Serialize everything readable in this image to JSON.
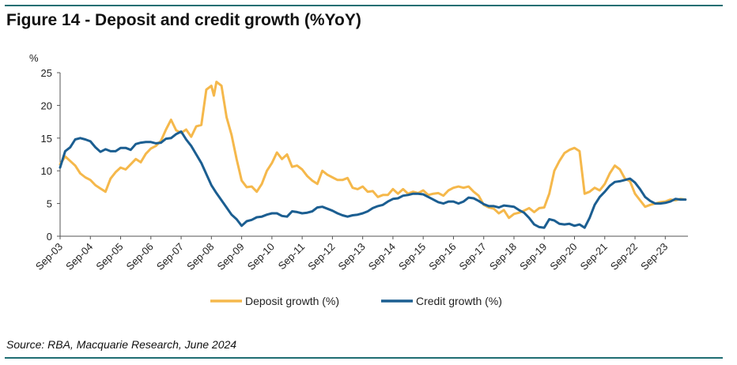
{
  "figure": {
    "title": "Figure 14 - Deposit and credit growth (%YoY)",
    "source": "Source: RBA, Macquarie Research, June 2024",
    "rule_color": "#1f6e73"
  },
  "chart_data": {
    "type": "line",
    "title": "Figure 14 - Deposit and credit growth (%YoY)",
    "ylabel": "%",
    "xlabel": "",
    "ylim": [
      0,
      25
    ],
    "yticks": [
      0,
      5,
      10,
      15,
      20,
      25
    ],
    "xlim": [
      "2003-09",
      "2024-06"
    ],
    "xticks": [
      "Sep-03",
      "Sep-04",
      "Sep-05",
      "Sep-06",
      "Sep-07",
      "Sep-08",
      "Sep-09",
      "Sep-10",
      "Sep-11",
      "Sep-12",
      "Sep-13",
      "Sep-14",
      "Sep-15",
      "Sep-16",
      "Sep-17",
      "Sep-18",
      "Sep-19",
      "Sep-20",
      "Sep-21",
      "Sep-22",
      "Sep-23"
    ],
    "grid": false,
    "legend": "bottom-center",
    "series": [
      {
        "name": "Deposit growth (%)",
        "color": "#f5b84b",
        "points": [
          [
            "2003-09",
            11.0
          ],
          [
            "2003-11",
            12.2
          ],
          [
            "2004-01",
            11.5
          ],
          [
            "2004-03",
            10.8
          ],
          [
            "2004-05",
            9.6
          ],
          [
            "2004-07",
            9.0
          ],
          [
            "2004-09",
            8.6
          ],
          [
            "2004-11",
            7.8
          ],
          [
            "2005-01",
            7.3
          ],
          [
            "2005-03",
            6.8
          ],
          [
            "2005-05",
            8.8
          ],
          [
            "2005-07",
            9.8
          ],
          [
            "2005-09",
            10.5
          ],
          [
            "2005-11",
            10.2
          ],
          [
            "2006-01",
            11.0
          ],
          [
            "2006-03",
            11.8
          ],
          [
            "2006-05",
            11.3
          ],
          [
            "2006-07",
            12.6
          ],
          [
            "2006-09",
            13.4
          ],
          [
            "2006-11",
            13.8
          ],
          [
            "2007-01",
            14.6
          ],
          [
            "2007-03",
            16.3
          ],
          [
            "2007-05",
            17.8
          ],
          [
            "2007-07",
            16.2
          ],
          [
            "2007-09",
            15.8
          ],
          [
            "2007-11",
            16.3
          ],
          [
            "2008-01",
            15.2
          ],
          [
            "2008-03",
            16.8
          ],
          [
            "2008-05",
            17.0
          ],
          [
            "2008-07",
            22.4
          ],
          [
            "2008-09",
            23.0
          ],
          [
            "2008-10",
            21.5
          ],
          [
            "2008-11",
            23.6
          ],
          [
            "2009-01",
            23.0
          ],
          [
            "2009-03",
            18.2
          ],
          [
            "2009-05",
            15.5
          ],
          [
            "2009-07",
            11.8
          ],
          [
            "2009-09",
            8.5
          ],
          [
            "2009-11",
            7.5
          ],
          [
            "2010-01",
            7.6
          ],
          [
            "2010-03",
            6.8
          ],
          [
            "2010-05",
            8.0
          ],
          [
            "2010-07",
            10.0
          ],
          [
            "2010-09",
            11.2
          ],
          [
            "2010-11",
            12.8
          ],
          [
            "2011-01",
            11.8
          ],
          [
            "2011-03",
            12.5
          ],
          [
            "2011-05",
            10.6
          ],
          [
            "2011-07",
            10.8
          ],
          [
            "2011-09",
            10.2
          ],
          [
            "2011-11",
            9.2
          ],
          [
            "2012-01",
            8.5
          ],
          [
            "2012-03",
            8.0
          ],
          [
            "2012-05",
            10.0
          ],
          [
            "2012-07",
            9.4
          ],
          [
            "2012-09",
            9.0
          ],
          [
            "2012-11",
            8.6
          ],
          [
            "2013-01",
            8.6
          ],
          [
            "2013-03",
            8.9
          ],
          [
            "2013-05",
            7.4
          ],
          [
            "2013-07",
            7.2
          ],
          [
            "2013-09",
            7.6
          ],
          [
            "2013-11",
            6.8
          ],
          [
            "2014-01",
            6.9
          ],
          [
            "2014-03",
            6.0
          ],
          [
            "2014-05",
            6.3
          ],
          [
            "2014-07",
            6.3
          ],
          [
            "2014-09",
            7.2
          ],
          [
            "2014-11",
            6.5
          ],
          [
            "2015-01",
            7.2
          ],
          [
            "2015-03",
            6.5
          ],
          [
            "2015-05",
            6.8
          ],
          [
            "2015-07",
            6.6
          ],
          [
            "2015-09",
            7.0
          ],
          [
            "2015-11",
            6.3
          ],
          [
            "2016-01",
            6.5
          ],
          [
            "2016-03",
            6.6
          ],
          [
            "2016-05",
            6.2
          ],
          [
            "2016-07",
            7.0
          ],
          [
            "2016-09",
            7.4
          ],
          [
            "2016-11",
            7.6
          ],
          [
            "2017-01",
            7.4
          ],
          [
            "2017-03",
            7.6
          ],
          [
            "2017-05",
            6.8
          ],
          [
            "2017-07",
            6.2
          ],
          [
            "2017-09",
            4.8
          ],
          [
            "2017-11",
            4.4
          ],
          [
            "2018-01",
            4.2
          ],
          [
            "2018-03",
            3.5
          ],
          [
            "2018-05",
            4.0
          ],
          [
            "2018-07",
            2.8
          ],
          [
            "2018-09",
            3.4
          ],
          [
            "2018-11",
            3.6
          ],
          [
            "2019-01",
            3.9
          ],
          [
            "2019-03",
            4.3
          ],
          [
            "2019-05",
            3.7
          ],
          [
            "2019-07",
            4.3
          ],
          [
            "2019-09",
            4.4
          ],
          [
            "2019-11",
            6.5
          ],
          [
            "2020-01",
            10.0
          ],
          [
            "2020-03",
            11.5
          ],
          [
            "2020-05",
            12.7
          ],
          [
            "2020-07",
            13.2
          ],
          [
            "2020-09",
            13.5
          ],
          [
            "2020-11",
            13.0
          ],
          [
            "2021-01",
            6.5
          ],
          [
            "2021-03",
            6.8
          ],
          [
            "2021-05",
            7.4
          ],
          [
            "2021-07",
            7.0
          ],
          [
            "2021-09",
            8.0
          ],
          [
            "2021-11",
            9.6
          ],
          [
            "2022-01",
            10.8
          ],
          [
            "2022-03",
            10.2
          ],
          [
            "2022-05",
            8.8
          ],
          [
            "2022-07",
            8.4
          ],
          [
            "2022-09",
            6.5
          ],
          [
            "2022-11",
            5.5
          ],
          [
            "2023-01",
            4.5
          ],
          [
            "2023-03",
            4.8
          ],
          [
            "2023-05",
            5.0
          ],
          [
            "2023-07",
            5.2
          ],
          [
            "2023-09",
            5.3
          ],
          [
            "2023-11",
            5.6
          ],
          [
            "2024-01",
            5.5
          ],
          [
            "2024-03",
            5.7
          ],
          [
            "2024-05",
            5.6
          ]
        ]
      },
      {
        "name": "Credit growth (%)",
        "color": "#1b5e91",
        "points": [
          [
            "2003-09",
            10.5
          ],
          [
            "2003-11",
            13.0
          ],
          [
            "2004-01",
            13.6
          ],
          [
            "2004-03",
            14.8
          ],
          [
            "2004-05",
            15.0
          ],
          [
            "2004-07",
            14.8
          ],
          [
            "2004-09",
            14.5
          ],
          [
            "2004-11",
            13.6
          ],
          [
            "2005-01",
            12.9
          ],
          [
            "2005-03",
            13.3
          ],
          [
            "2005-05",
            13.0
          ],
          [
            "2005-07",
            13.0
          ],
          [
            "2005-09",
            13.5
          ],
          [
            "2005-11",
            13.5
          ],
          [
            "2006-01",
            13.2
          ],
          [
            "2006-03",
            14.1
          ],
          [
            "2006-05",
            14.3
          ],
          [
            "2006-07",
            14.4
          ],
          [
            "2006-09",
            14.4
          ],
          [
            "2006-11",
            14.2
          ],
          [
            "2007-01",
            14.3
          ],
          [
            "2007-03",
            14.9
          ],
          [
            "2007-05",
            15.0
          ],
          [
            "2007-07",
            15.6
          ],
          [
            "2007-09",
            16.0
          ],
          [
            "2007-11",
            14.8
          ],
          [
            "2008-01",
            13.8
          ],
          [
            "2008-03",
            12.5
          ],
          [
            "2008-05",
            11.2
          ],
          [
            "2008-07",
            9.5
          ],
          [
            "2008-09",
            7.8
          ],
          [
            "2008-11",
            6.6
          ],
          [
            "2009-01",
            5.5
          ],
          [
            "2009-03",
            4.4
          ],
          [
            "2009-05",
            3.3
          ],
          [
            "2009-07",
            2.6
          ],
          [
            "2009-09",
            1.6
          ],
          [
            "2009-11",
            2.3
          ],
          [
            "2010-01",
            2.5
          ],
          [
            "2010-03",
            2.9
          ],
          [
            "2010-05",
            3.0
          ],
          [
            "2010-07",
            3.3
          ],
          [
            "2010-09",
            3.5
          ],
          [
            "2010-11",
            3.5
          ],
          [
            "2011-01",
            3.1
          ],
          [
            "2011-03",
            3.0
          ],
          [
            "2011-05",
            3.8
          ],
          [
            "2011-07",
            3.7
          ],
          [
            "2011-09",
            3.5
          ],
          [
            "2011-11",
            3.6
          ],
          [
            "2012-01",
            3.8
          ],
          [
            "2012-03",
            4.4
          ],
          [
            "2012-05",
            4.5
          ],
          [
            "2012-07",
            4.2
          ],
          [
            "2012-09",
            3.9
          ],
          [
            "2012-11",
            3.5
          ],
          [
            "2013-01",
            3.2
          ],
          [
            "2013-03",
            3.0
          ],
          [
            "2013-05",
            3.2
          ],
          [
            "2013-07",
            3.3
          ],
          [
            "2013-09",
            3.5
          ],
          [
            "2013-11",
            3.8
          ],
          [
            "2014-01",
            4.3
          ],
          [
            "2014-03",
            4.6
          ],
          [
            "2014-05",
            4.8
          ],
          [
            "2014-07",
            5.3
          ],
          [
            "2014-09",
            5.7
          ],
          [
            "2014-11",
            5.8
          ],
          [
            "2015-01",
            6.2
          ],
          [
            "2015-03",
            6.3
          ],
          [
            "2015-05",
            6.5
          ],
          [
            "2015-07",
            6.5
          ],
          [
            "2015-09",
            6.4
          ],
          [
            "2015-11",
            6.0
          ],
          [
            "2016-01",
            5.6
          ],
          [
            "2016-03",
            5.2
          ],
          [
            "2016-05",
            5.0
          ],
          [
            "2016-07",
            5.3
          ],
          [
            "2016-09",
            5.3
          ],
          [
            "2016-11",
            5.0
          ],
          [
            "2017-01",
            5.3
          ],
          [
            "2017-03",
            5.9
          ],
          [
            "2017-05",
            5.8
          ],
          [
            "2017-07",
            5.4
          ],
          [
            "2017-09",
            4.9
          ],
          [
            "2017-11",
            4.6
          ],
          [
            "2018-01",
            4.6
          ],
          [
            "2018-03",
            4.4
          ],
          [
            "2018-05",
            4.7
          ],
          [
            "2018-07",
            4.6
          ],
          [
            "2018-09",
            4.5
          ],
          [
            "2018-11",
            4.0
          ],
          [
            "2019-01",
            3.6
          ],
          [
            "2019-03",
            2.8
          ],
          [
            "2019-05",
            1.8
          ],
          [
            "2019-07",
            1.4
          ],
          [
            "2019-09",
            1.3
          ],
          [
            "2019-11",
            2.6
          ],
          [
            "2020-01",
            2.4
          ],
          [
            "2020-03",
            1.9
          ],
          [
            "2020-05",
            1.8
          ],
          [
            "2020-07",
            1.9
          ],
          [
            "2020-09",
            1.6
          ],
          [
            "2020-11",
            1.8
          ],
          [
            "2021-01",
            1.3
          ],
          [
            "2021-03",
            2.8
          ],
          [
            "2021-05",
            4.8
          ],
          [
            "2021-07",
            6.0
          ],
          [
            "2021-09",
            6.8
          ],
          [
            "2021-11",
            7.7
          ],
          [
            "2022-01",
            8.3
          ],
          [
            "2022-03",
            8.4
          ],
          [
            "2022-05",
            8.6
          ],
          [
            "2022-07",
            8.8
          ],
          [
            "2022-09",
            8.2
          ],
          [
            "2022-11",
            7.2
          ],
          [
            "2023-01",
            6.0
          ],
          [
            "2023-03",
            5.4
          ],
          [
            "2023-05",
            5.0
          ],
          [
            "2023-07",
            5.0
          ],
          [
            "2023-09",
            5.1
          ],
          [
            "2023-11",
            5.3
          ],
          [
            "2024-01",
            5.7
          ],
          [
            "2024-03",
            5.6
          ],
          [
            "2024-05",
            5.6
          ]
        ]
      }
    ]
  }
}
